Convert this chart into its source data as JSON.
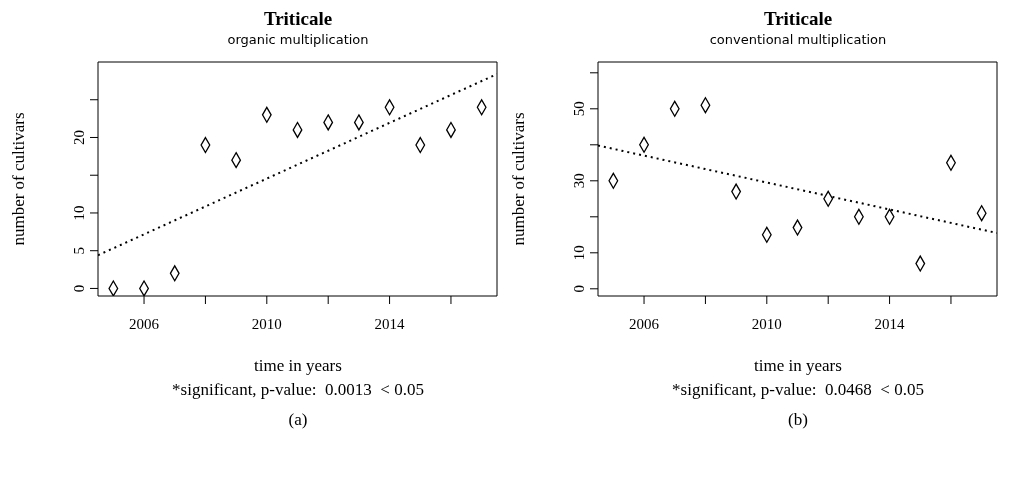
{
  "chart_data": [
    {
      "type": "scatter",
      "title": "Triticale",
      "subtitle": "organic multiplication",
      "xlabel": "time in years",
      "ylabel": "number of cultivars",
      "annotations": [
        "*significant, p-value:  0.0013  < 0.05",
        "(a)"
      ],
      "marker": "diamond",
      "xlim": [
        2004.5,
        2017.5
      ],
      "xticks": [
        2006,
        {
          "value": 2008,
          "label": null
        },
        2010,
        {
          "value": 2012,
          "label": null
        },
        2014,
        {
          "value": 2016,
          "label": null
        }
      ],
      "ylim": [
        -1,
        30
      ],
      "yticks": [
        0,
        5,
        10,
        {
          "value": 15,
          "label": null
        },
        20,
        {
          "value": 25,
          "label": null
        }
      ],
      "series": [
        {
          "color": "#000000",
          "x": [
            2005,
            2006,
            2007,
            2008,
            2009,
            2010,
            2011,
            2012,
            2013,
            2014,
            2015,
            2016,
            2017
          ],
          "values": [
            0,
            0,
            2,
            19,
            17,
            23,
            21,
            22,
            22,
            24,
            19,
            21,
            24
          ]
        },
        {
          "type": "line",
          "line_style": "dotted",
          "marker": "none",
          "color": "#000000",
          "x": [
            2004.5,
            2017.5
          ],
          "values": [
            4.4,
            28.4
          ]
        }
      ]
    },
    {
      "type": "scatter",
      "title": "Triticale",
      "subtitle": "conventional multiplication",
      "xlabel": "time in years",
      "ylabel": "number of cultivars",
      "annotations": [
        "*significant, p-value:  0.0468  < 0.05",
        "(b)"
      ],
      "marker": "diamond",
      "xlim": [
        2004.5,
        2017.5
      ],
      "xticks": [
        2006,
        {
          "value": 2008,
          "label": null
        },
        2010,
        {
          "value": 2012,
          "label": null
        },
        2014,
        {
          "value": 2016,
          "label": null
        }
      ],
      "ylim": [
        -2,
        63
      ],
      "yticks": [
        0,
        10,
        {
          "value": 20,
          "label": null
        },
        30,
        {
          "value": 40,
          "label": null
        },
        50,
        {
          "value": 60,
          "label": null
        }
      ],
      "series": [
        {
          "color": "#000000",
          "x": [
            2005,
            2006,
            2007,
            2008,
            2009,
            2010,
            2011,
            2012,
            2013,
            2014,
            2015,
            2016,
            2017
          ],
          "values": [
            30,
            40,
            50,
            51,
            27,
            15,
            17,
            25,
            20,
            20,
            7,
            35,
            21
          ]
        },
        {
          "type": "line",
          "line_style": "dotted",
          "marker": "none",
          "color": "#000000",
          "x": [
            2004.5,
            2017.5
          ],
          "values": [
            39.8,
            15.5
          ]
        }
      ]
    }
  ]
}
